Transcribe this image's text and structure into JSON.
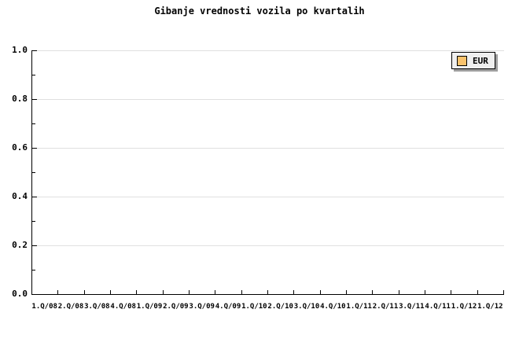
{
  "chart_data": {
    "type": "line",
    "title": "Gibanje vrednosti vozila po kvartalih",
    "categories": [
      "1.Q/08",
      "2.Q/08",
      "3.Q/08",
      "4.Q/08",
      "1.Q/09",
      "2.Q/09",
      "3.Q/09",
      "4.Q/09",
      "1.Q/10",
      "2.Q/10",
      "3.Q/10",
      "4.Q/10",
      "1.Q/11",
      "2.Q/11",
      "3.Q/11",
      "4.Q/11",
      "1.Q/12",
      "1.Q/12"
    ],
    "series": [
      {
        "name": "EUR",
        "color": "#fac36d",
        "values": []
      }
    ],
    "xlabel": "",
    "ylabel": "",
    "ylim": [
      0.0,
      1.0
    ],
    "y_tick_labels": [
      "1.0",
      "0.8",
      "0.6",
      "0.4",
      "0.2",
      "0.0"
    ],
    "y_major_step": 0.2,
    "y_minor_step": 0.1,
    "grid": "horizontal-major-only",
    "legend_position": "top-right"
  },
  "legend": {
    "items": [
      {
        "label": "EUR",
        "swatch_color": "#fac36d"
      }
    ]
  },
  "colors": {
    "background": "#ffffff",
    "text": "#000000",
    "axis": "#000000",
    "gridline": "#e0e0e0",
    "legend_background": "#efefef",
    "legend_border": "#000000",
    "legend_shadow": "#9e9e9e",
    "series_eur": "#fac36d"
  }
}
